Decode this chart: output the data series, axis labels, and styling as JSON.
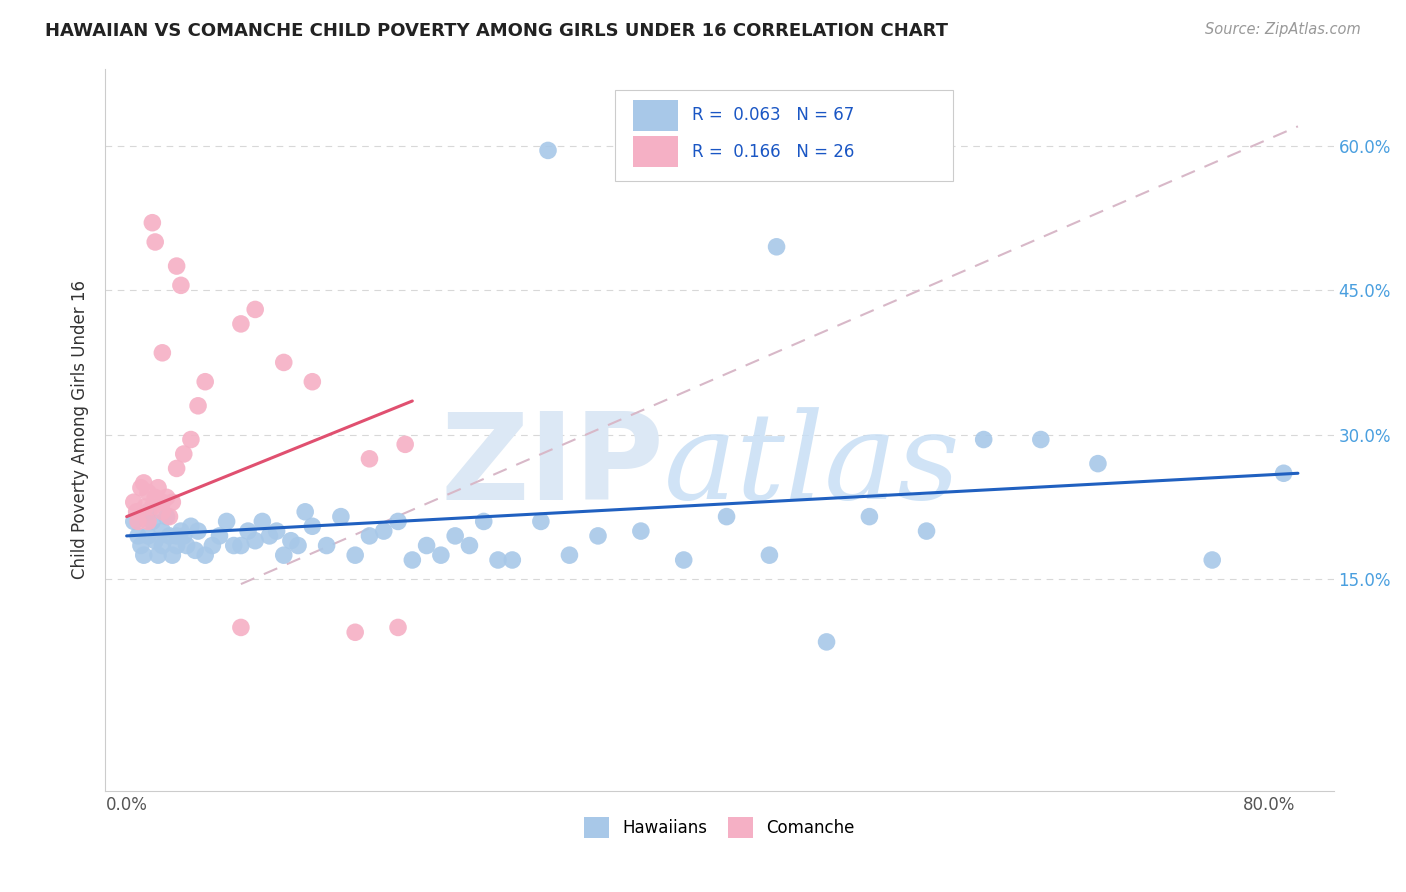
{
  "title": "HAWAIIAN VS COMANCHE CHILD POVERTY AMONG GIRLS UNDER 16 CORRELATION CHART",
  "source": "Source: ZipAtlas.com",
  "ylabel": "Child Poverty Among Girls Under 16",
  "x_tick_positions": [
    0.0,
    0.1,
    0.2,
    0.3,
    0.4,
    0.5,
    0.6,
    0.7,
    0.8
  ],
  "x_tick_labels": [
    "0.0%",
    "",
    "",
    "",
    "",
    "",
    "",
    "",
    "80.0%"
  ],
  "y_tick_positions": [
    0.0,
    0.15,
    0.3,
    0.45,
    0.6
  ],
  "y_tick_labels": [
    "",
    "15.0%",
    "30.0%",
    "45.0%",
    "60.0%"
  ],
  "xlim": [
    -0.015,
    0.845
  ],
  "ylim": [
    -0.07,
    0.68
  ],
  "hawaiians_R": "0.063",
  "hawaiians_N": "67",
  "comanche_R": "0.166",
  "comanche_N": "26",
  "hawaiians_color": "#a8c8e8",
  "comanche_color": "#f5b0c5",
  "hawaiians_line_color": "#2060c0",
  "comanche_line_color": "#e05070",
  "background_color": "#ffffff",
  "grid_color": "#d8d8d8",
  "watermark_color": "#dce8f5",
  "hawaiians_x": [
    0.005,
    0.008,
    0.01,
    0.012,
    0.015,
    0.015,
    0.018,
    0.02,
    0.022,
    0.025,
    0.025,
    0.028,
    0.03,
    0.032,
    0.035,
    0.035,
    0.038,
    0.04,
    0.042,
    0.045,
    0.048,
    0.05,
    0.055,
    0.06,
    0.065,
    0.07,
    0.075,
    0.08,
    0.085,
    0.09,
    0.095,
    0.1,
    0.105,
    0.11,
    0.115,
    0.12,
    0.125,
    0.13,
    0.14,
    0.15,
    0.16,
    0.17,
    0.18,
    0.19,
    0.2,
    0.21,
    0.22,
    0.23,
    0.24,
    0.25,
    0.26,
    0.27,
    0.29,
    0.31,
    0.33,
    0.36,
    0.39,
    0.42,
    0.45,
    0.49,
    0.52,
    0.56,
    0.6,
    0.64,
    0.68,
    0.76,
    0.81
  ],
  "hawaiians_y": [
    0.21,
    0.195,
    0.185,
    0.175,
    0.22,
    0.195,
    0.21,
    0.19,
    0.175,
    0.2,
    0.185,
    0.215,
    0.195,
    0.175,
    0.185,
    0.195,
    0.2,
    0.195,
    0.185,
    0.205,
    0.18,
    0.2,
    0.175,
    0.185,
    0.195,
    0.21,
    0.185,
    0.185,
    0.2,
    0.19,
    0.21,
    0.195,
    0.2,
    0.175,
    0.19,
    0.185,
    0.22,
    0.205,
    0.185,
    0.215,
    0.175,
    0.195,
    0.2,
    0.21,
    0.17,
    0.185,
    0.175,
    0.195,
    0.185,
    0.21,
    0.17,
    0.17,
    0.21,
    0.175,
    0.195,
    0.2,
    0.17,
    0.215,
    0.175,
    0.085,
    0.215,
    0.2,
    0.295,
    0.295,
    0.27,
    0.17,
    0.26
  ],
  "comanche_x": [
    0.005,
    0.007,
    0.008,
    0.01,
    0.012,
    0.013,
    0.015,
    0.015,
    0.018,
    0.02,
    0.022,
    0.025,
    0.025,
    0.028,
    0.03,
    0.032,
    0.035,
    0.04,
    0.045,
    0.05,
    0.055,
    0.09,
    0.11,
    0.13,
    0.17,
    0.195
  ],
  "comanche_y": [
    0.23,
    0.22,
    0.21,
    0.245,
    0.25,
    0.225,
    0.21,
    0.24,
    0.225,
    0.235,
    0.245,
    0.23,
    0.22,
    0.235,
    0.215,
    0.23,
    0.265,
    0.28,
    0.295,
    0.33,
    0.355,
    0.43,
    0.375,
    0.355,
    0.275,
    0.29
  ],
  "hawaiians_line_x": [
    0.0,
    0.82
  ],
  "hawaiians_line_y": [
    0.195,
    0.26
  ],
  "comanche_line_x": [
    0.0,
    0.2
  ],
  "comanche_line_y": [
    0.215,
    0.335
  ],
  "diag_line_x": [
    0.08,
    0.82
  ],
  "diag_line_y": [
    0.145,
    0.62
  ]
}
